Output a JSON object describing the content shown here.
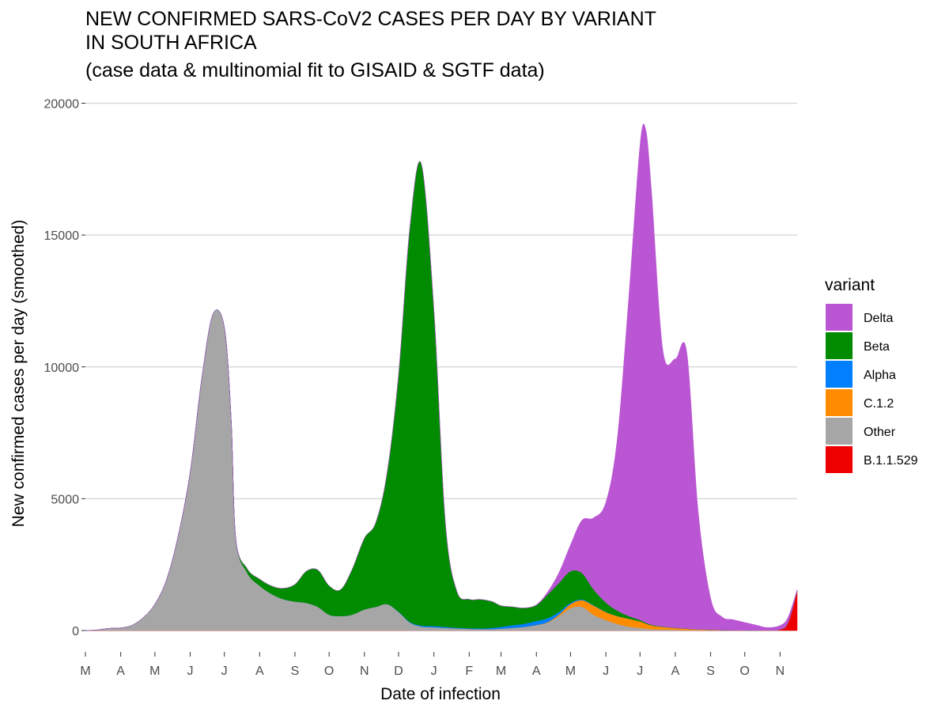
{
  "chart_data": {
    "type": "area",
    "stacked": true,
    "title_lines": [
      "NEW CONFIRMED SARS-CoV2 CASES PER DAY BY VARIANT",
      "IN SOUTH AFRICA",
      "(case data & multinomial fit to GISAID & SGTF data)"
    ],
    "xlabel": "Date of infection",
    "ylabel": "New confirmed cases per day (smoothed)",
    "legend_title": "variant",
    "legend_position": "right",
    "grid": "horizontal major",
    "x_tick_labels": [
      "M",
      "A",
      "M",
      "J",
      "J",
      "A",
      "S",
      "O",
      "N",
      "D",
      "J",
      "F",
      "M",
      "A",
      "M",
      "J",
      "J",
      "A",
      "S",
      "O",
      "N"
    ],
    "x_ticks": [
      "2020-03-01",
      "2020-04-01",
      "2020-05-01",
      "2020-06-01",
      "2020-07-01",
      "2020-08-01",
      "2020-09-01",
      "2020-10-01",
      "2020-11-01",
      "2020-12-01",
      "2021-01-01",
      "2021-02-01",
      "2021-03-01",
      "2021-04-01",
      "2021-05-01",
      "2021-06-01",
      "2021-07-01",
      "2021-08-01",
      "2021-09-01",
      "2021-10-01",
      "2021-11-01"
    ],
    "xlim": [
      "2020-03-01",
      "2021-11-16"
    ],
    "y_ticks": [
      0,
      5000,
      10000,
      15000,
      20000
    ],
    "y_tick_labels": [
      "0",
      "5000",
      "10000",
      "15000",
      "20000"
    ],
    "ylim": [
      0,
      20000
    ],
    "x": [
      "2020-03-01",
      "2020-03-11",
      "2020-03-21",
      "2020-04-01",
      "2020-04-11",
      "2020-04-21",
      "2020-05-01",
      "2020-05-11",
      "2020-05-21",
      "2020-06-01",
      "2020-06-11",
      "2020-06-21",
      "2020-07-01",
      "2020-07-07",
      "2020-07-11",
      "2020-07-21",
      "2020-08-01",
      "2020-08-11",
      "2020-08-21",
      "2020-09-01",
      "2020-09-11",
      "2020-09-21",
      "2020-10-01",
      "2020-10-11",
      "2020-10-21",
      "2020-11-01",
      "2020-11-11",
      "2020-11-21",
      "2020-12-01",
      "2020-12-11",
      "2020-12-21",
      "2021-01-01",
      "2021-01-11",
      "2021-01-21",
      "2021-02-01",
      "2021-02-11",
      "2021-02-21",
      "2021-03-01",
      "2021-03-11",
      "2021-03-21",
      "2021-04-01",
      "2021-04-11",
      "2021-04-21",
      "2021-05-01",
      "2021-05-11",
      "2021-05-21",
      "2021-06-01",
      "2021-06-11",
      "2021-06-21",
      "2021-07-01",
      "2021-07-06",
      "2021-07-11",
      "2021-07-21",
      "2021-08-01",
      "2021-08-11",
      "2021-08-21",
      "2021-09-01",
      "2021-09-11",
      "2021-09-21",
      "2021-10-01",
      "2021-10-11",
      "2021-10-21",
      "2021-11-01",
      "2021-11-08",
      "2021-11-16"
    ],
    "series": [
      {
        "name": "B.1.1.529",
        "color": "#ee0000",
        "values": [
          0,
          0,
          0,
          0,
          0,
          0,
          0,
          0,
          0,
          0,
          0,
          0,
          0,
          0,
          0,
          0,
          0,
          0,
          0,
          0,
          0,
          0,
          0,
          0,
          0,
          0,
          0,
          0,
          0,
          0,
          0,
          0,
          0,
          0,
          0,
          0,
          0,
          0,
          0,
          0,
          0,
          0,
          0,
          0,
          0,
          0,
          0,
          0,
          0,
          0,
          0,
          0,
          0,
          0,
          0,
          0,
          0,
          0,
          0,
          0,
          2,
          10,
          40,
          300,
          1500
        ]
      },
      {
        "name": "Other",
        "color": "#a6a6a6",
        "values": [
          0,
          20,
          80,
          100,
          200,
          500,
          1000,
          1900,
          3500,
          6000,
          9500,
          12000,
          11500,
          8000,
          3500,
          2200,
          1700,
          1400,
          1200,
          1100,
          1050,
          900,
          600,
          550,
          600,
          800,
          900,
          1000,
          700,
          300,
          150,
          120,
          100,
          80,
          60,
          50,
          50,
          70,
          100,
          130,
          200,
          300,
          550,
          850,
          900,
          600,
          400,
          250,
          150,
          100,
          70,
          50,
          40,
          30,
          20,
          15,
          10,
          8,
          5,
          3,
          2,
          1,
          1,
          1,
          1
        ]
      },
      {
        "name": "C.1.2",
        "color": "#ff8c00",
        "values": [
          0,
          0,
          0,
          0,
          0,
          0,
          0,
          0,
          0,
          0,
          0,
          0,
          0,
          0,
          0,
          0,
          0,
          0,
          0,
          0,
          0,
          0,
          0,
          0,
          0,
          0,
          0,
          0,
          0,
          0,
          0,
          0,
          0,
          0,
          0,
          0,
          0,
          0,
          0,
          5,
          10,
          20,
          60,
          150,
          250,
          350,
          300,
          300,
          300,
          250,
          200,
          150,
          100,
          70,
          50,
          30,
          20,
          10,
          5,
          3,
          2,
          1,
          0,
          0,
          0
        ]
      },
      {
        "name": "Alpha",
        "color": "#0080ff",
        "values": [
          0,
          0,
          0,
          0,
          0,
          0,
          0,
          0,
          0,
          0,
          0,
          0,
          0,
          0,
          0,
          0,
          0,
          0,
          0,
          0,
          0,
          0,
          0,
          0,
          0,
          0,
          0,
          5,
          15,
          25,
          40,
          50,
          40,
          30,
          25,
          30,
          50,
          70,
          100,
          120,
          150,
          150,
          100,
          50,
          30,
          20,
          10,
          5,
          2,
          1,
          0,
          0,
          0,
          0,
          0,
          0,
          0,
          0,
          0,
          0,
          0,
          0,
          0,
          0,
          0
        ]
      },
      {
        "name": "Beta",
        "color": "#008b00",
        "values": [
          0,
          0,
          0,
          0,
          0,
          0,
          0,
          0,
          0,
          0,
          0,
          0,
          0,
          0,
          0,
          150,
          250,
          300,
          400,
          650,
          1200,
          1400,
          1100,
          1000,
          1700,
          2700,
          3200,
          5000,
          9000,
          15000,
          17500,
          12000,
          4000,
          1400,
          1100,
          1100,
          1000,
          800,
          700,
          600,
          600,
          900,
          1100,
          1200,
          1000,
          600,
          350,
          200,
          100,
          50,
          30,
          20,
          10,
          5,
          2,
          1,
          0,
          0,
          0,
          0,
          0,
          0,
          0,
          0,
          0
        ]
      },
      {
        "name": "Delta",
        "color": "#ba55d3",
        "values": [
          0,
          0,
          0,
          0,
          0,
          0,
          0,
          0,
          0,
          0,
          0,
          0,
          0,
          0,
          0,
          0,
          0,
          0,
          0,
          0,
          0,
          0,
          0,
          0,
          0,
          0,
          0,
          0,
          0,
          0,
          0,
          0,
          0,
          0,
          0,
          0,
          0,
          0,
          0,
          0,
          20,
          100,
          400,
          1000,
          2000,
          2700,
          3800,
          6500,
          12000,
          18000,
          18700,
          16500,
          10500,
          10200,
          10500,
          4500,
          1200,
          500,
          400,
          300,
          200,
          100,
          150,
          200,
          50
        ]
      }
    ],
    "legend_order": [
      "Delta",
      "Beta",
      "Alpha",
      "C.1.2",
      "Other",
      "B.1.1.529"
    ]
  }
}
